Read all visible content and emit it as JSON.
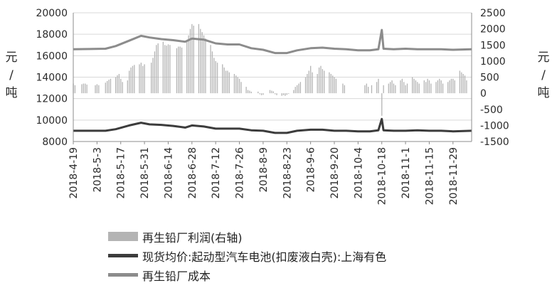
{
  "chart_data": {
    "type": "line",
    "title": "",
    "ylabel_left": "元/吨",
    "ylabel_right": "元/吨",
    "y_left_ticks": [
      "20000",
      "18000",
      "16000",
      "14000",
      "12000",
      "10000",
      "8000"
    ],
    "y_right_ticks": [
      "2500",
      "2000",
      "1500",
      "1000",
      "500",
      "0",
      "-500",
      "-1000",
      "-1500"
    ],
    "ylim_left": [
      8000,
      20000
    ],
    "ylim_right": [
      -1500,
      2500
    ],
    "x_tick_labels": [
      "2018-4-19",
      "2018-5-3",
      "2018-5-17",
      "2018-5-31",
      "2018-6-14",
      "2018-6-28",
      "2018-7-12",
      "2018-7-26",
      "2018-8-9",
      "2018-8-23",
      "2018-9-6",
      "2018-9-20",
      "2018-10-4",
      "2018-10-18",
      "2018-11-1",
      "2018-11-15",
      "2018-11-29"
    ],
    "x_range": [
      "2018-4-19",
      "2018-12-10"
    ],
    "legend": [
      {
        "label": "再生铅厂利润(右轴)",
        "color": "#b4b4b4",
        "kind": "bar"
      },
      {
        "label": "现货均价:起动型汽车电池(扣废液白壳):上海有色",
        "color": "#3c3c3c",
        "kind": "line"
      },
      {
        "label": "再生铅厂成本",
        "color": "#8c8c8c",
        "kind": "line"
      }
    ],
    "series": [
      {
        "name": "再生铅厂成本",
        "axis": "left",
        "points": [
          [
            "2018-4-19",
            16600
          ],
          [
            "2018-5-8",
            16650
          ],
          [
            "2018-5-14",
            16900
          ],
          [
            "2018-5-22",
            17400
          ],
          [
            "2018-5-29",
            17850
          ],
          [
            "2018-6-3",
            17700
          ],
          [
            "2018-6-10",
            17550
          ],
          [
            "2018-6-17",
            17450
          ],
          [
            "2018-6-24",
            17300
          ],
          [
            "2018-6-28",
            17600
          ],
          [
            "2018-7-5",
            17500
          ],
          [
            "2018-7-12",
            17150
          ],
          [
            "2018-7-19",
            17050
          ],
          [
            "2018-7-26",
            17050
          ],
          [
            "2018-8-2",
            16700
          ],
          [
            "2018-8-9",
            16550
          ],
          [
            "2018-8-16",
            16250
          ],
          [
            "2018-8-23",
            16250
          ],
          [
            "2018-8-29",
            16500
          ],
          [
            "2018-9-6",
            16700
          ],
          [
            "2018-9-13",
            16750
          ],
          [
            "2018-9-20",
            16650
          ],
          [
            "2018-9-27",
            16600
          ],
          [
            "2018-10-4",
            16500
          ],
          [
            "2018-10-11",
            16500
          ],
          [
            "2018-10-16",
            16600
          ],
          [
            "2018-10-18",
            18400
          ],
          [
            "2018-10-19",
            16650
          ],
          [
            "2018-10-25",
            16600
          ],
          [
            "2018-11-1",
            16650
          ],
          [
            "2018-11-8",
            16600
          ],
          [
            "2018-11-15",
            16600
          ],
          [
            "2018-11-22",
            16600
          ],
          [
            "2018-11-29",
            16550
          ],
          [
            "2018-12-10",
            16600
          ]
        ]
      },
      {
        "name": "现货均价:起动型汽车电池(扣废液白壳):上海有色",
        "axis": "left",
        "points": [
          [
            "2018-4-19",
            9000
          ],
          [
            "2018-5-8",
            9000
          ],
          [
            "2018-5-14",
            9150
          ],
          [
            "2018-5-22",
            9500
          ],
          [
            "2018-5-29",
            9750
          ],
          [
            "2018-6-3",
            9600
          ],
          [
            "2018-6-10",
            9550
          ],
          [
            "2018-6-17",
            9450
          ],
          [
            "2018-6-24",
            9300
          ],
          [
            "2018-6-28",
            9500
          ],
          [
            "2018-7-5",
            9400
          ],
          [
            "2018-7-12",
            9200
          ],
          [
            "2018-7-19",
            9200
          ],
          [
            "2018-7-26",
            9200
          ],
          [
            "2018-8-2",
            9050
          ],
          [
            "2018-8-9",
            9000
          ],
          [
            "2018-8-16",
            8800
          ],
          [
            "2018-8-23",
            8800
          ],
          [
            "2018-8-29",
            9000
          ],
          [
            "2018-9-6",
            9100
          ],
          [
            "2018-9-13",
            9100
          ],
          [
            "2018-9-20",
            9000
          ],
          [
            "2018-9-27",
            9000
          ],
          [
            "2018-10-4",
            8950
          ],
          [
            "2018-10-11",
            8950
          ],
          [
            "2018-10-16",
            9050
          ],
          [
            "2018-10-18",
            10100
          ],
          [
            "2018-10-19",
            9050
          ],
          [
            "2018-10-25",
            9000
          ],
          [
            "2018-11-1",
            9000
          ],
          [
            "2018-11-8",
            9050
          ],
          [
            "2018-11-15",
            9000
          ],
          [
            "2018-11-22",
            9000
          ],
          [
            "2018-11-29",
            8950
          ],
          [
            "2018-12-10",
            9000
          ]
        ]
      },
      {
        "name": "再生铅厂利润(右轴)",
        "axis": "right",
        "type": "bar",
        "points": [
          [
            "2018-4-19",
            300
          ],
          [
            "2018-4-20",
            250
          ],
          [
            "2018-4-24",
            280
          ],
          [
            "2018-4-25",
            300
          ],
          [
            "2018-4-26",
            300
          ],
          [
            "2018-4-27",
            270
          ],
          [
            "2018-5-2",
            250
          ],
          [
            "2018-5-3",
            280
          ],
          [
            "2018-5-4",
            250
          ],
          [
            "2018-5-8",
            330
          ],
          [
            "2018-5-9",
            380
          ],
          [
            "2018-5-10",
            420
          ],
          [
            "2018-5-11",
            450
          ],
          [
            "2018-5-14",
            500
          ],
          [
            "2018-5-15",
            560
          ],
          [
            "2018-5-16",
            600
          ],
          [
            "2018-5-17",
            450
          ],
          [
            "2018-5-18",
            350
          ],
          [
            "2018-5-21",
            400
          ],
          [
            "2018-5-22",
            700
          ],
          [
            "2018-5-23",
            800
          ],
          [
            "2018-5-24",
            850
          ],
          [
            "2018-5-25",
            880
          ],
          [
            "2018-5-28",
            900
          ],
          [
            "2018-5-29",
            950
          ],
          [
            "2018-5-30",
            850
          ],
          [
            "2018-5-31",
            900
          ],
          [
            "2018-6-4",
            950
          ],
          [
            "2018-6-5",
            1100
          ],
          [
            "2018-6-6",
            1300
          ],
          [
            "2018-6-7",
            1500
          ],
          [
            "2018-6-8",
            1550
          ],
          [
            "2018-6-11",
            1600
          ],
          [
            "2018-6-12",
            1500
          ],
          [
            "2018-6-13",
            1480
          ],
          [
            "2018-6-14",
            1520
          ],
          [
            "2018-6-15",
            1500
          ],
          [
            "2018-6-19",
            1400
          ],
          [
            "2018-6-20",
            1450
          ],
          [
            "2018-6-21",
            1450
          ],
          [
            "2018-6-22",
            1420
          ],
          [
            "2018-6-25",
            1650
          ],
          [
            "2018-6-26",
            1800
          ],
          [
            "2018-6-27",
            2000
          ],
          [
            "2018-6-28",
            2150
          ],
          [
            "2018-6-29",
            2100
          ],
          [
            "2018-7-2",
            2150
          ],
          [
            "2018-7-3",
            2000
          ],
          [
            "2018-7-4",
            1900
          ],
          [
            "2018-7-5",
            1800
          ],
          [
            "2018-7-6",
            1700
          ],
          [
            "2018-7-9",
            1500
          ],
          [
            "2018-7-10",
            1300
          ],
          [
            "2018-7-11",
            1100
          ],
          [
            "2018-7-12",
            1000
          ],
          [
            "2018-7-13",
            950
          ],
          [
            "2018-7-16",
            900
          ],
          [
            "2018-7-17",
            800
          ],
          [
            "2018-7-18",
            700
          ],
          [
            "2018-7-19",
            700
          ],
          [
            "2018-7-20",
            650
          ],
          [
            "2018-7-23",
            600
          ],
          [
            "2018-7-24",
            550
          ],
          [
            "2018-7-25",
            500
          ],
          [
            "2018-7-26",
            450
          ],
          [
            "2018-7-27",
            350
          ],
          [
            "2018-7-30",
            200
          ],
          [
            "2018-7-31",
            100
          ],
          [
            "2018-8-1",
            80
          ],
          [
            "2018-8-2",
            50
          ],
          [
            "2018-8-6",
            50
          ],
          [
            "2018-8-7",
            -30
          ],
          [
            "2018-8-8",
            -60
          ],
          [
            "2018-8-9",
            -50
          ],
          [
            "2018-8-13",
            100
          ],
          [
            "2018-8-14",
            80
          ],
          [
            "2018-8-15",
            60
          ],
          [
            "2018-8-16",
            -30
          ],
          [
            "2018-8-17",
            -60
          ],
          [
            "2018-8-20",
            -80
          ],
          [
            "2018-8-21",
            -60
          ],
          [
            "2018-8-22",
            -80
          ],
          [
            "2018-8-23",
            -50
          ],
          [
            "2018-8-24",
            -20
          ],
          [
            "2018-8-27",
            100
          ],
          [
            "2018-8-28",
            200
          ],
          [
            "2018-8-29",
            250
          ],
          [
            "2018-8-30",
            300
          ],
          [
            "2018-8-31",
            350
          ],
          [
            "2018-9-3",
            500
          ],
          [
            "2018-9-4",
            600
          ],
          [
            "2018-9-5",
            700
          ],
          [
            "2018-9-6",
            850
          ],
          [
            "2018-9-7",
            650
          ],
          [
            "2018-9-10",
            600
          ],
          [
            "2018-9-11",
            800
          ],
          [
            "2018-9-12",
            850
          ],
          [
            "2018-9-13",
            750
          ],
          [
            "2018-9-14",
            700
          ],
          [
            "2018-9-17",
            650
          ],
          [
            "2018-9-18",
            600
          ],
          [
            "2018-9-19",
            550
          ],
          [
            "2018-9-20",
            500
          ],
          [
            "2018-9-21",
            450
          ],
          [
            "2018-9-25",
            300
          ],
          [
            "2018-9-26",
            250
          ],
          [
            "2018-10-8",
            250
          ],
          [
            "2018-10-9",
            300
          ],
          [
            "2018-10-10",
            200
          ],
          [
            "2018-10-12",
            250
          ],
          [
            "2018-10-15",
            350
          ],
          [
            "2018-10-16",
            450
          ],
          [
            "2018-10-18",
            -700
          ],
          [
            "2018-10-19",
            250
          ],
          [
            "2018-10-22",
            300
          ],
          [
            "2018-10-23",
            350
          ],
          [
            "2018-10-24",
            400
          ],
          [
            "2018-10-25",
            300
          ],
          [
            "2018-10-26",
            250
          ],
          [
            "2018-10-29",
            400
          ],
          [
            "2018-10-30",
            450
          ],
          [
            "2018-10-31",
            350
          ],
          [
            "2018-11-1",
            250
          ],
          [
            "2018-11-2",
            300
          ],
          [
            "2018-11-5",
            500
          ],
          [
            "2018-11-6",
            450
          ],
          [
            "2018-11-7",
            400
          ],
          [
            "2018-11-8",
            350
          ],
          [
            "2018-11-9",
            300
          ],
          [
            "2018-11-12",
            400
          ],
          [
            "2018-11-13",
            350
          ],
          [
            "2018-11-14",
            450
          ],
          [
            "2018-11-15",
            400
          ],
          [
            "2018-11-16",
            300
          ],
          [
            "2018-11-19",
            350
          ],
          [
            "2018-11-20",
            400
          ],
          [
            "2018-11-21",
            450
          ],
          [
            "2018-11-22",
            400
          ],
          [
            "2018-11-23",
            300
          ],
          [
            "2018-11-26",
            350
          ],
          [
            "2018-11-27",
            400
          ],
          [
            "2018-11-28",
            450
          ],
          [
            "2018-11-29",
            450
          ],
          [
            "2018-11-30",
            400
          ],
          [
            "2018-12-3",
            700
          ],
          [
            "2018-12-4",
            650
          ],
          [
            "2018-12-5",
            600
          ],
          [
            "2018-12-6",
            550
          ],
          [
            "2018-12-7",
            400
          ]
        ]
      }
    ],
    "grid": true,
    "legend_position": "bottom-left"
  }
}
